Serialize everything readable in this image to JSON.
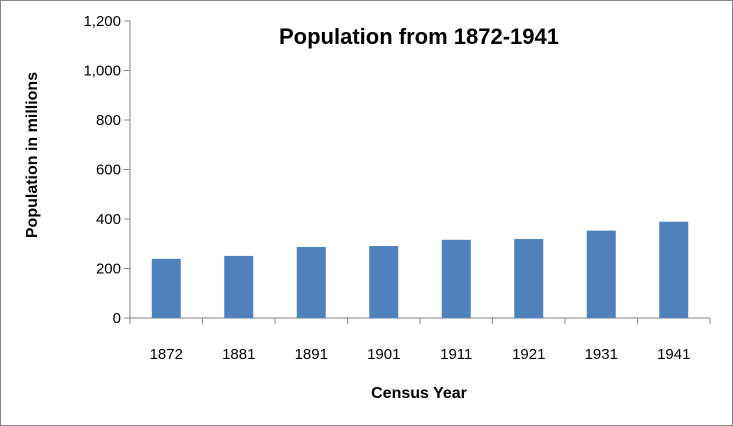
{
  "chart_data": {
    "type": "bar",
    "title": "Population from 1872-1941",
    "xlabel": "Census Year",
    "ylabel": "Population in millions",
    "categories": [
      "1872",
      "1881",
      "1891",
      "1901",
      "1911",
      "1921",
      "1931",
      "1941"
    ],
    "values": [
      239,
      251,
      287,
      291,
      316,
      319,
      353,
      389
    ],
    "ylim": [
      0,
      1200
    ],
    "yticks": [
      0,
      200,
      400,
      600,
      800,
      1000,
      1200
    ],
    "ytick_labels": [
      "0",
      "200",
      "400",
      "600",
      "800",
      "1,000",
      "1,200"
    ],
    "grid": false,
    "legend": "none",
    "bar_color": "#4f81bd"
  }
}
